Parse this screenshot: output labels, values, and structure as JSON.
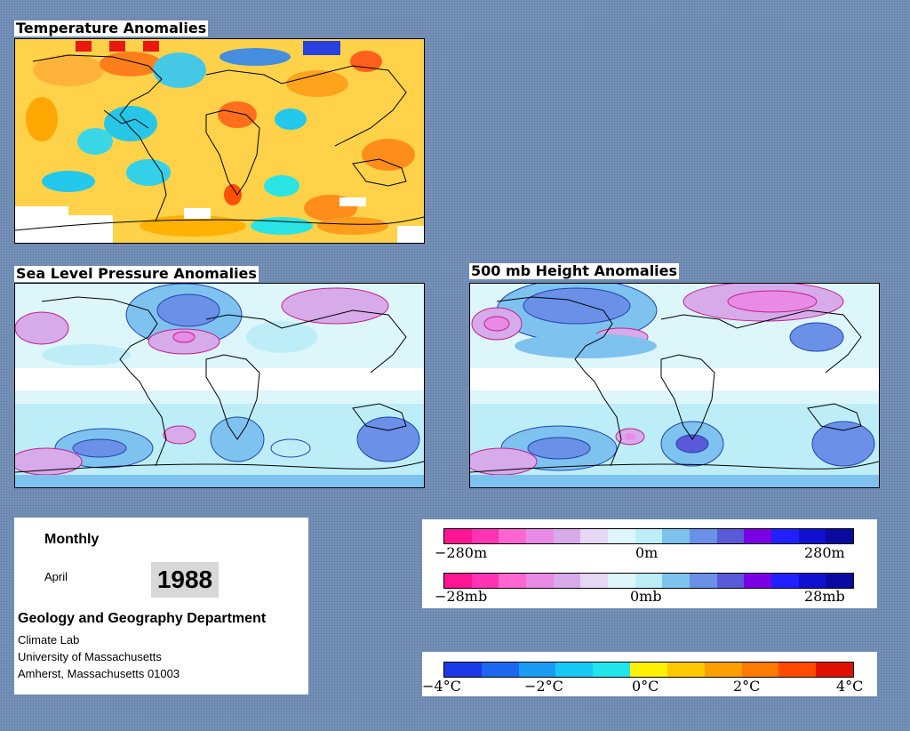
{
  "panels": {
    "temperature": {
      "title": "Temperature Anomalies"
    },
    "slp": {
      "title": "Sea Level Pressure Anomalies"
    },
    "height": {
      "title": "500 mb Height Anomalies"
    }
  },
  "info": {
    "period": "Monthly",
    "month": "April",
    "year": "1988",
    "department": "Geology and Geography Department",
    "lab": "Climate Lab",
    "university": "University of Massachusetts",
    "address": "Amherst, Massachusetts 01003"
  },
  "legends": {
    "height": {
      "min": "−280m",
      "mid": "0m",
      "max": "280m"
    },
    "pressure": {
      "min": "−28mb",
      "mid": "0mb",
      "max": "28mb"
    },
    "temperature": {
      "labels": [
        "−4°C",
        "−2°C",
        "0°C",
        "2°C",
        "4°C"
      ]
    }
  },
  "colors": {
    "background": "#7a96bd",
    "anomaly_scale": [
      "#ff1493",
      "#ff33b4",
      "#ff66d0",
      "#e98ae6",
      "#d7aaea",
      "#e5d7f5",
      "#ddf6fa",
      "#bdeef8",
      "#7ec2f0",
      "#6a90e8",
      "#5a5ad8",
      "#7a00e6",
      "#2020ff",
      "#1010d0",
      "#0a0aa0"
    ],
    "temperature_scale": [
      "#1a3ae8",
      "#1c68f0",
      "#1a9cf5",
      "#18c8f5",
      "#20e6ee",
      "#fff200",
      "#ffc800",
      "#ffa000",
      "#ff7a00",
      "#ff4a00",
      "#e01000"
    ]
  }
}
